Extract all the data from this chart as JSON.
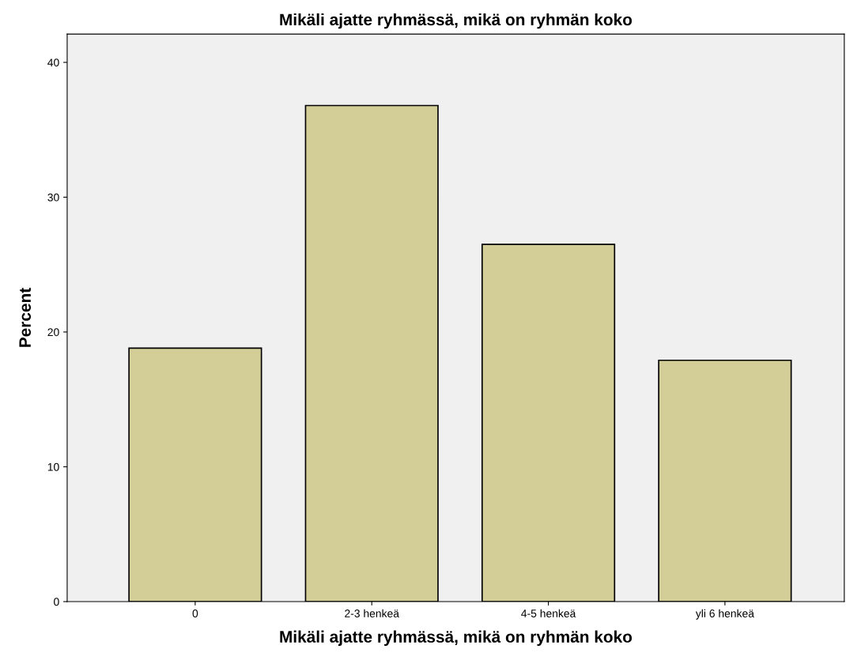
{
  "chart_data": {
    "type": "bar",
    "title": "Mikäli ajatte ryhmässä, mikä on ryhmän koko",
    "xlabel": "Mikäli ajatte ryhmässä, mikä on ryhmän koko",
    "ylabel": "Percent",
    "categories": [
      "0",
      "2-3 henkeä",
      "4-5 henkeä",
      "yli 6 henkeä"
    ],
    "values": [
      18.8,
      36.8,
      26.5,
      17.9
    ],
    "color": "#d3ce98",
    "ylim": [
      0,
      42.1
    ],
    "yticks": [
      0,
      10,
      20,
      30,
      40
    ],
    "grid": false,
    "legend": false
  }
}
